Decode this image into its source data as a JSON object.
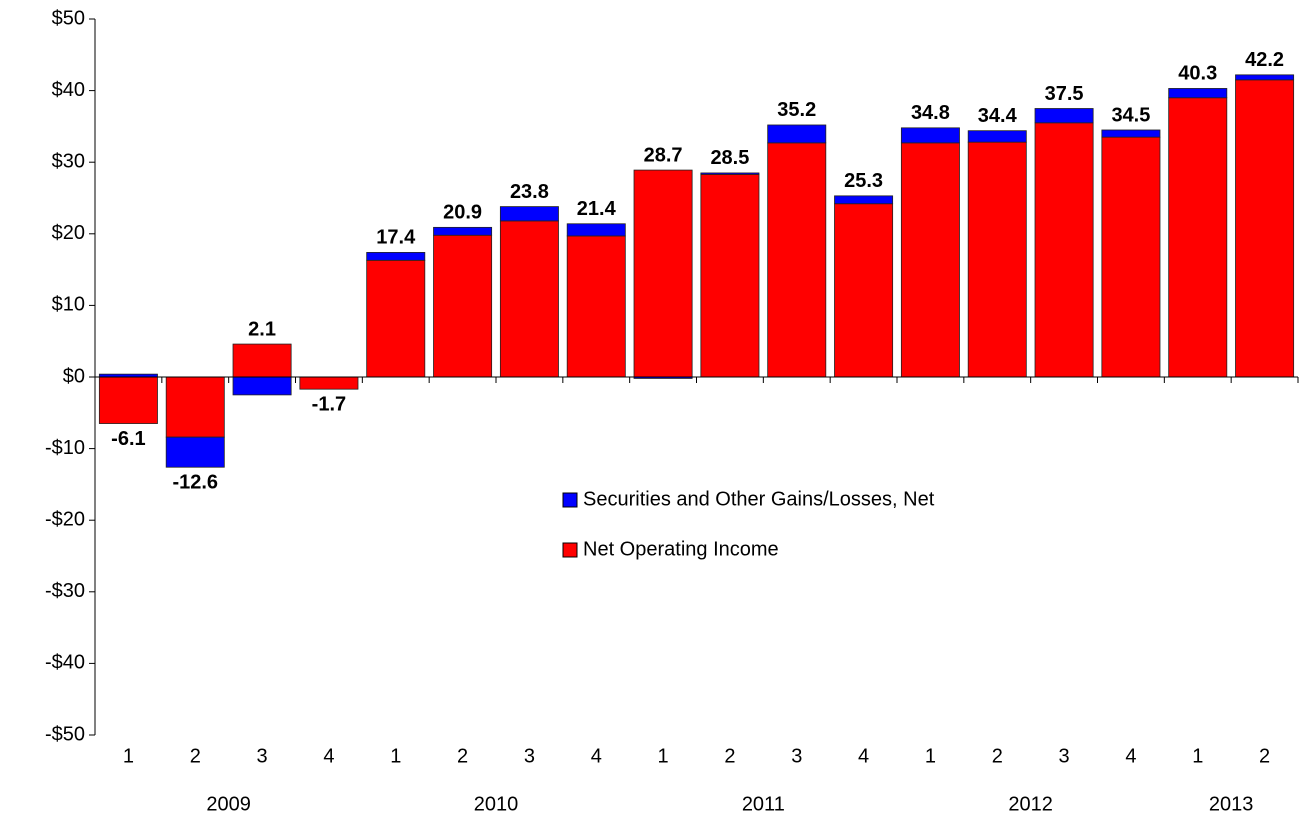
{
  "chart_data": {
    "type": "stacked-bar",
    "categories": [
      "1",
      "2",
      "3",
      "4",
      "1",
      "2",
      "3",
      "4",
      "1",
      "2",
      "3",
      "4",
      "1",
      "2",
      "3",
      "4",
      "1",
      "2"
    ],
    "groups": [
      "2009",
      null,
      null,
      null,
      "2010",
      null,
      null,
      null,
      "2011",
      null,
      null,
      null,
      "2012",
      null,
      null,
      null,
      "2013",
      null
    ],
    "series": [
      {
        "name": "Securities and Other Gains/Losses, Net",
        "color": "#0000ff",
        "values": [
          0.4,
          -4.2,
          -2.5,
          0,
          1.1,
          1.1,
          2.0,
          1.7,
          -0.2,
          0.2,
          2.5,
          1.1,
          2.1,
          1.6,
          2.0,
          1.0,
          1.3,
          0.7
        ]
      },
      {
        "name": "Net Operating Income",
        "color": "#ff0000",
        "values": [
          -6.5,
          -8.4,
          4.6,
          -1.7,
          16.3,
          19.8,
          21.8,
          19.7,
          28.9,
          28.3,
          32.7,
          24.2,
          32.7,
          32.8,
          35.5,
          33.5,
          39.0,
          41.5
        ]
      }
    ],
    "totals": [
      -6.1,
      -12.6,
      2.1,
      -1.7,
      17.4,
      20.9,
      23.8,
      21.4,
      28.7,
      28.5,
      35.2,
      25.3,
      34.8,
      34.4,
      37.5,
      34.5,
      40.3,
      42.2
    ],
    "ylim": [
      -50,
      50
    ],
    "yticks": [
      {
        "value": -50,
        "label": "-$50"
      },
      {
        "value": -40,
        "label": "-$40"
      },
      {
        "value": -30,
        "label": "-$30"
      },
      {
        "value": -20,
        "label": "-$20"
      },
      {
        "value": -10,
        "label": "-$10"
      },
      {
        "value": 0,
        "label": "$0"
      },
      {
        "value": 10,
        "label": "$10"
      },
      {
        "value": 20,
        "label": "$20"
      },
      {
        "value": 30,
        "label": "$30"
      },
      {
        "value": 40,
        "label": "$40"
      },
      {
        "value": 50,
        "label": "$50"
      }
    ],
    "grid": false
  }
}
